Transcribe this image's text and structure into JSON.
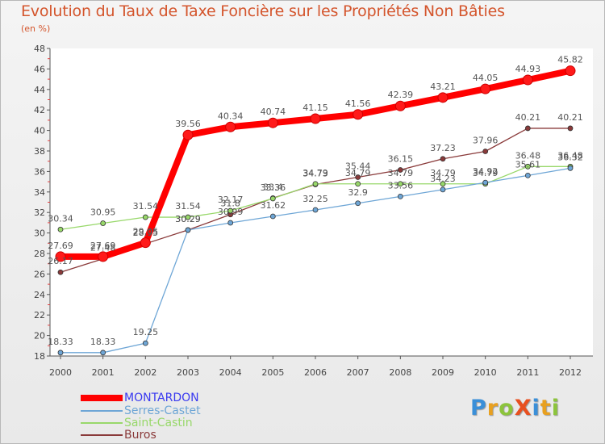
{
  "chart_data": {
    "type": "line",
    "title": "Evolution du Taux de Taxe Foncière sur les Propriétés Non Bâties",
    "subtitle": "(en %)",
    "xlabel": "",
    "ylabel": "",
    "x": [
      "2000",
      "2001",
      "2002",
      "2003",
      "2004",
      "2005",
      "2006",
      "2007",
      "2008",
      "2009",
      "2010",
      "2011",
      "2012"
    ],
    "ylim": [
      18,
      48
    ],
    "yticks": [
      18,
      20,
      22,
      24,
      26,
      28,
      30,
      32,
      34,
      36,
      38,
      40,
      42,
      44,
      46,
      48
    ],
    "grid": false,
    "legend_position": "bottom-left",
    "series": [
      {
        "name": "MONTARDON",
        "color": "#ff0000",
        "label_color": "#3a3af0",
        "values": [
          27.69,
          27.69,
          29.05,
          39.56,
          40.34,
          40.74,
          41.15,
          41.56,
          42.39,
          43.21,
          44.05,
          44.93,
          45.82
        ],
        "labels": [
          "27.69",
          "27.69",
          "29.05",
          "39.56",
          "40.34",
          "40.74",
          "41.15",
          "41.56",
          "42.39",
          "43.21",
          "44.05",
          "44.93",
          "45.82"
        ]
      },
      {
        "name": "Serres-Castet",
        "color": "#6ea6d6",
        "label_color": "#6ea6d6",
        "values": [
          18.33,
          18.33,
          19.25,
          30.29,
          30.99,
          31.62,
          32.25,
          32.9,
          33.56,
          34.23,
          34.92,
          35.61,
          36.32
        ],
        "labels": [
          "18.33",
          "18.33",
          "19.25",
          "30.29",
          "30.99",
          "31.62",
          "32.25",
          "32.9",
          "33.56",
          "34.23",
          "34.92",
          "35.61",
          "36.32"
        ]
      },
      {
        "name": "Saint-Castin",
        "color": "#98d86a",
        "label_color": "#98d86a",
        "values": [
          30.34,
          30.95,
          31.54,
          31.54,
          32.17,
          33.36,
          34.79,
          34.79,
          34.79,
          34.79,
          34.79,
          36.48,
          36.48
        ],
        "labels": [
          "30.34",
          "30.95",
          "31.54",
          "31.54",
          "32.17",
          "33.36",
          "34.79",
          "34.79",
          "34.79",
          "34.79",
          "34.79",
          "36.48",
          "36.48"
        ]
      },
      {
        "name": "Buros",
        "color": "#8a3a3a",
        "label_color": "#8a3a3a",
        "values": [
          26.17,
          27.48,
          28.95,
          30.29,
          31.8,
          33.4,
          34.73,
          35.44,
          36.15,
          37.23,
          37.96,
          40.21,
          40.21
        ],
        "labels": [
          "26.17",
          "27.48",
          "28.95",
          "30.29",
          "31.8",
          "33.4",
          "34.73",
          "35.44",
          "36.15",
          "37.23",
          "37.96",
          "40.21",
          "40.21"
        ]
      }
    ]
  },
  "logo": {
    "text": "ProXiti",
    "letters": [
      {
        "ch": "P",
        "color": "#3a8fd8"
      },
      {
        "ch": "r",
        "color": "#e8a020"
      },
      {
        "ch": "o",
        "color": "#8cc43c"
      },
      {
        "ch": "X",
        "color": "#e85020"
      },
      {
        "ch": "i",
        "color": "#3a8fd8"
      },
      {
        "ch": "t",
        "color": "#e8a020"
      },
      {
        "ch": "i",
        "color": "#8cc43c"
      }
    ]
  }
}
